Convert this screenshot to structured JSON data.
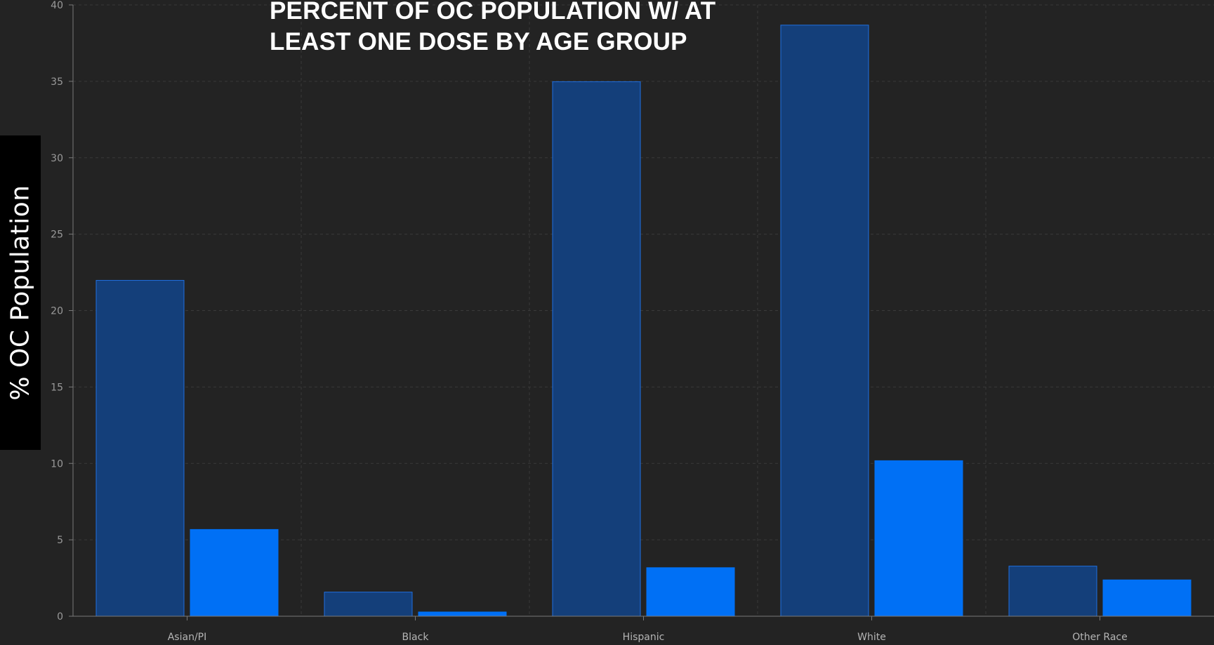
{
  "chart_data": {
    "type": "bar",
    "title": "PERCENT OF OC POPULATION W/ AT LEAST ONE DOSE BY AGE GROUP",
    "xlabel": "",
    "ylabel": "% OC Population",
    "ylim": [
      0,
      40
    ],
    "yticks": [
      0,
      5,
      10,
      15,
      20,
      25,
      30,
      35,
      40
    ],
    "categories": [
      "Asian/PI",
      "Black",
      "Hispanic",
      "White",
      "Other Race"
    ],
    "series": [
      {
        "values": [
          22.0,
          1.6,
          35.0,
          38.7,
          3.3
        ],
        "color": "#143f7a",
        "stroke": "#1f6fe0"
      },
      {
        "values": [
          5.7,
          0.3,
          3.2,
          10.2,
          2.4
        ],
        "color": "#0070f5",
        "stroke": "#0070f5"
      }
    ],
    "grid": true,
    "gridColor": "#3a3a3a",
    "axisColor": "#7a7a7a",
    "legend": "none"
  }
}
